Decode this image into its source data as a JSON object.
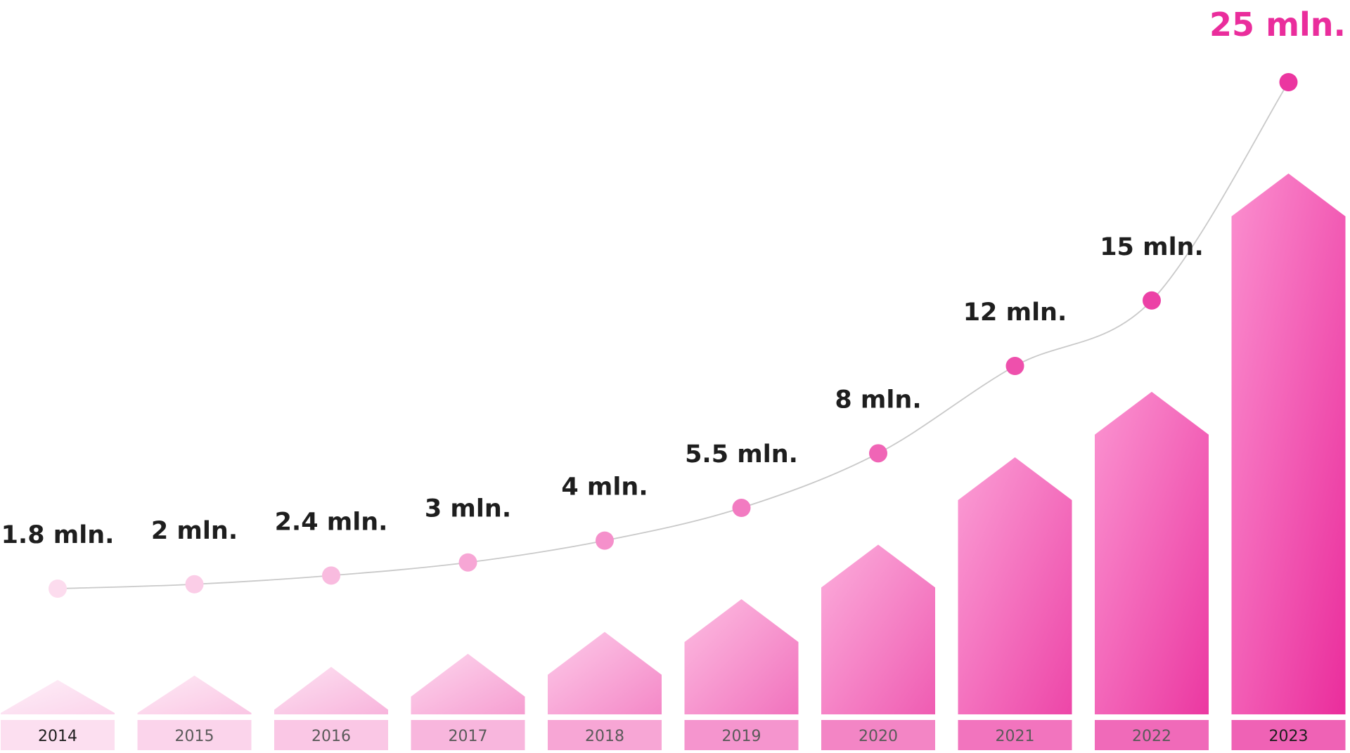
{
  "chart_data": {
    "type": "bar",
    "categories": [
      "2014",
      "2015",
      "2016",
      "2017",
      "2018",
      "2019",
      "2020",
      "2021",
      "2022",
      "2023"
    ],
    "values": [
      1.8,
      2,
      2.4,
      3,
      4,
      5.5,
      8,
      12,
      15,
      25
    ],
    "value_labels": [
      "1.8 mln.",
      "2 mln.",
      "2.4 mln.",
      "3 mln.",
      "4 mln.",
      "5.5 mln.",
      "8 mln.",
      "12 mln.",
      "15 mln.",
      "25 mln."
    ],
    "overlay": "line with markers connecting the values",
    "highlight_category": "2023",
    "bar_lightness": [
      0.08,
      0.16,
      0.26,
      0.38,
      0.5,
      0.62,
      0.74,
      0.86,
      0.94,
      1.0
    ],
    "colors": {
      "accent": "#ea2d9c",
      "bar_light": "#fde3f2",
      "line": "#c9c9c9",
      "value_text": "#1e1e1e"
    },
    "grid": false,
    "legend": "none"
  }
}
